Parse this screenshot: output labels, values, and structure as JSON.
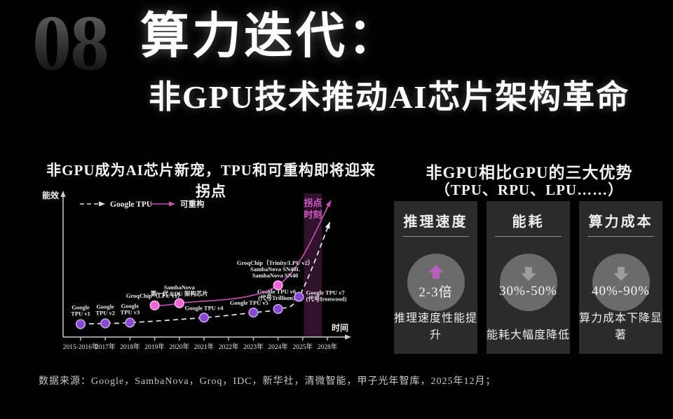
{
  "page_number": "08",
  "header": {
    "title": "算力迭代：",
    "subtitle": "非GPU技术推动AI芯片架构革命"
  },
  "left_panel": {
    "title": "非GPU成为AI芯片新宠，TPU和可重构即将迎来拐点"
  },
  "chart_data": {
    "type": "line",
    "title": "非GPU成为AI芯片新宠，TPU和可重构即将迎来拐点",
    "xlabel": "时间",
    "ylabel": "能效",
    "x_ticks": [
      "2015-2016年",
      "2017年",
      "2018年",
      "2019年",
      "2020年",
      "2021年",
      "2022年",
      "2023年",
      "2024年",
      "2025年",
      "2028年"
    ],
    "ylim": [
      0,
      100
    ],
    "grid": false,
    "legend_position": "top-left",
    "band": {
      "label_lines": [
        "拐点",
        "时刻"
      ],
      "from_tick": 9.05,
      "to_tick": 9.78,
      "color": "rgba(173,64,160,0.28)",
      "label_color": "#d75ac4"
    },
    "series": [
      {
        "name": "Google TPU",
        "style": "dashed",
        "line_color": "#e8e8e8",
        "dot_fill": "#8948d0",
        "dot_stroke": "#c9a2ef",
        "points": [
          {
            "tick": 0,
            "value": 9,
            "label_lines": [
              "Google",
              "TPU v1"
            ],
            "anchor": "middle",
            "dx": 0,
            "dy": -21
          },
          {
            "tick": 1,
            "value": 9.5,
            "label_lines": [
              "Google",
              "TPU v2"
            ],
            "anchor": "middle",
            "dx": 0,
            "dy": -21
          },
          {
            "tick": 2,
            "value": 10,
            "label_lines": [
              "Google",
              "TPU v3"
            ],
            "anchor": "middle",
            "dx": 0,
            "dy": -21
          },
          {
            "tick": 5,
            "value": 13.5,
            "label_lines": [
              "Google TPU v4"
            ],
            "anchor": "middle",
            "dx": 0,
            "dy": -11
          },
          {
            "tick": 7,
            "value": 17,
            "label_lines": [
              "Google TPU v5"
            ],
            "anchor": "middle",
            "dx": -6,
            "dy": -11
          },
          {
            "tick": 8,
            "value": 19.5,
            "label_lines": [
              "Google TPU v6",
              "(代号Trillium)"
            ],
            "anchor": "middle",
            "dx": -2,
            "dy": -22
          },
          {
            "tick": 8.85,
            "value": 28,
            "label_lines": [
              "Google TPU v7",
              "(代号Ironwood)"
            ],
            "anchor": "start",
            "dx": 10,
            "dy": -3
          }
        ],
        "arrow_end": {
          "tick": 10.1,
          "value": 80
        }
      },
      {
        "name": "可重构",
        "style": "solid",
        "line_color": "#c94db2",
        "dot_fill": "#ee65d6",
        "dot_stroke": "#ffaeee",
        "points": [
          {
            "tick": 3,
            "value": 22,
            "label_lines": [
              "GroqChip（LPU v1）"
            ],
            "anchor": "middle",
            "dx": 0,
            "dy": -11
          },
          {
            "tick": 4,
            "value": 23.5,
            "label_lines": [
              "SambaNova",
              "第一代 RDU 架构芯片"
            ],
            "anchor": "middle",
            "dx": 0,
            "dy": -20
          },
          {
            "tick": 8,
            "value": 36,
            "label_lines": [
              "GroqChip（Trinity/LPU v2）",
              "SambaNova SN40L",
              "SambaNova SN40"
            ],
            "anchor": "middle",
            "dx": -4,
            "dy": -29
          }
        ],
        "arrow_end": {
          "tick": 10.15,
          "value": 95
        }
      }
    ]
  },
  "right_panel": {
    "title_line1": "非GPU相比GPU的三大优势",
    "title_line2": "（TPU、RPU、LPU……）",
    "cards": [
      {
        "title": "推理速度",
        "direction": "up",
        "arrow_color": "#b760bc",
        "value": "2-3倍",
        "caption": "推理速度性能提升"
      },
      {
        "title": "能耗",
        "direction": "down",
        "arrow_color": "#9c9c9c",
        "value": "30%-50%",
        "caption": "能耗大幅度降低"
      },
      {
        "title": "算力成本",
        "direction": "down",
        "arrow_color": "#9c9c9c",
        "value": "40%-90%",
        "caption": "算力成本下降显著"
      }
    ]
  },
  "footer": {
    "source": "数据来源：Google，SambaNova，Groq，IDC，新华社，清微智能，甲子光年智库，2025年12月；"
  }
}
